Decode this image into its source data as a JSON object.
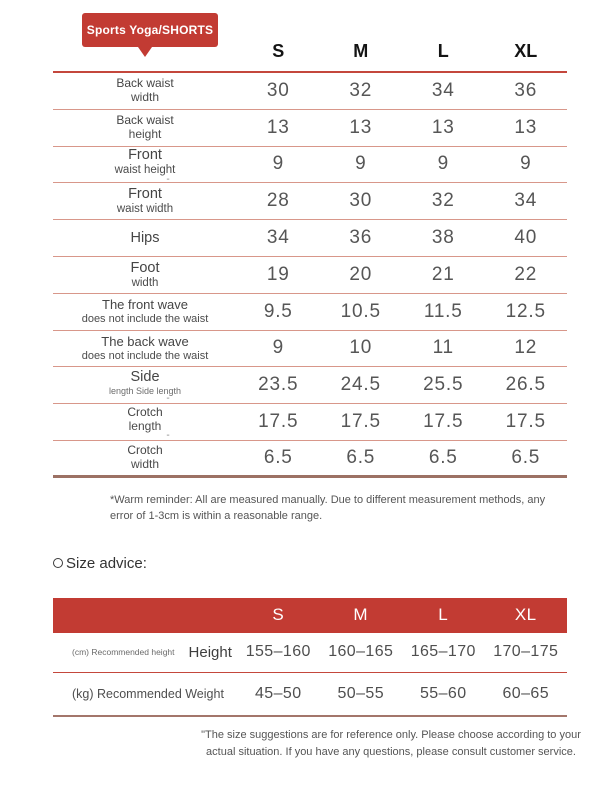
{
  "colors": {
    "accent_red": "#c23b33",
    "header_line_red": "#c4473c",
    "row_line_salmon": "#d8978a",
    "bottom_line_brown": "#9c7164",
    "advice_bottom_line": "#a3766b",
    "value_text": "#565656"
  },
  "badge": {
    "label": "Sports Yoga/SHORTS"
  },
  "size_table": {
    "columns": [
      "S",
      "M",
      "L",
      "XL"
    ],
    "rows": [
      {
        "label": "Back waist",
        "sublabel": "width",
        "dash": "",
        "variant": "sm",
        "values": [
          "30",
          "32",
          "34",
          "36"
        ]
      },
      {
        "label": "Back waist",
        "sublabel": "height",
        "dash": "",
        "variant": "sm",
        "values": [
          "13",
          "13",
          "13",
          "13"
        ]
      },
      {
        "label": "Front",
        "sublabel": "waist height",
        "dash": "-",
        "variant": "lg",
        "values": [
          "9",
          "9",
          "9",
          "9"
        ]
      },
      {
        "label": "Front",
        "sublabel": "waist width",
        "dash": "",
        "variant": "lg",
        "values": [
          "28",
          "30",
          "32",
          "34"
        ]
      },
      {
        "label": "Hips",
        "sublabel": "",
        "dash": "",
        "variant": "lg",
        "values": [
          "34",
          "36",
          "38",
          "40"
        ]
      },
      {
        "label": "Foot",
        "sublabel": "width",
        "dash": "",
        "variant": "lg",
        "values": [
          "19",
          "20",
          "21",
          "22"
        ]
      },
      {
        "label": "The front wave",
        "sublabel": "does not include the waist",
        "dash": "",
        "variant": "md",
        "values": [
          "9.5",
          "10.5",
          "11.5",
          "12.5"
        ]
      },
      {
        "label": "The back wave",
        "sublabel": "does not include the waist",
        "dash": "",
        "variant": "md",
        "values": [
          "9",
          "10",
          "11",
          "12"
        ]
      },
      {
        "label": "Side",
        "sublabel": "length Side length",
        "dash": "-",
        "variant": "lg-tiny",
        "values": [
          "23.5",
          "24.5",
          "25.5",
          "26.5"
        ]
      },
      {
        "label": "Crotch",
        "sublabel": "length",
        "dash": "-",
        "variant": "sm",
        "values": [
          "17.5",
          "17.5",
          "17.5",
          "17.5"
        ]
      },
      {
        "label": "Crotch",
        "sublabel": "width",
        "dash": "",
        "variant": "sm",
        "values": [
          "6.5",
          "6.5",
          "6.5",
          "6.5"
        ]
      }
    ],
    "footnote": "*Warm reminder: All are measured manually. Due to different measurement methods, any error of 1-3cm is within a reasonable range."
  },
  "size_advice": {
    "heading": "Size advice:",
    "columns": [
      "S",
      "M",
      "L",
      "XL"
    ],
    "rows": [
      {
        "label_small": "(cm) Recommended height",
        "label": "Height",
        "values": [
          "155–160",
          "160–165",
          "165–170",
          "170–175"
        ]
      },
      {
        "label_small": "(kg) Recommended Weight",
        "label": "",
        "values": [
          "45–50",
          "50–55",
          "55–60",
          "60–65"
        ]
      }
    ],
    "footnote": "\"The size suggestions are for reference only. Please choose according to your actual situation. If you have any questions, please consult customer service."
  }
}
